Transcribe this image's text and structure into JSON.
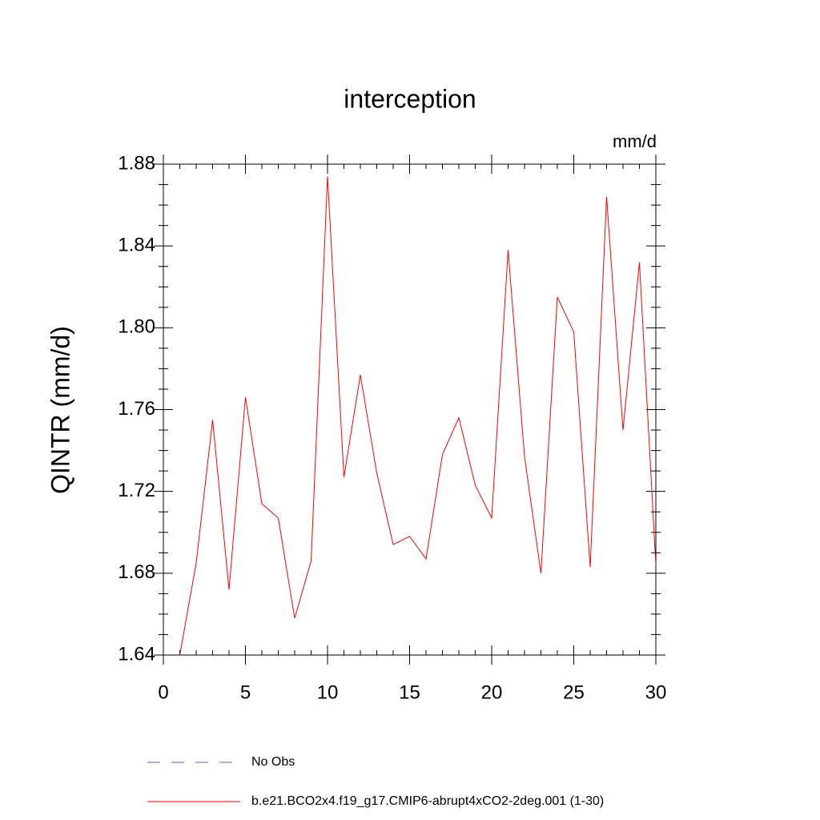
{
  "chart_data": {
    "type": "line",
    "title": "interception",
    "units_label": "mm/d",
    "y_label": "QINTR  (mm/d)",
    "x": [
      1,
      2,
      3,
      4,
      5,
      6,
      7,
      8,
      9,
      10,
      11,
      12,
      13,
      14,
      15,
      16,
      17,
      18,
      19,
      20,
      21,
      22,
      23,
      24,
      25,
      26,
      27,
      28,
      29,
      30
    ],
    "series": [
      {
        "name": "b.e21.BCO2x4.f19_g17.CMIP6-abrupt4xCO2-2deg.001 (1-30)",
        "color": "#ff0000",
        "values": [
          1.64,
          1.685,
          1.755,
          1.672,
          1.766,
          1.714,
          1.707,
          1.658,
          1.686,
          1.874,
          1.727,
          1.777,
          1.729,
          1.694,
          1.698,
          1.687,
          1.738,
          1.756,
          1.723,
          1.707,
          1.838,
          1.737,
          1.68,
          1.815,
          1.798,
          1.683,
          1.864,
          1.75,
          1.832,
          1.684
        ]
      }
    ],
    "extra_legend": [
      {
        "name": "No Obs",
        "color": "#6a5acd",
        "dashed": true
      }
    ],
    "xlim": [
      0,
      30
    ],
    "xticks": [
      0,
      5,
      10,
      15,
      20,
      25,
      30
    ],
    "ylim": [
      1.64,
      1.88
    ],
    "yticks": [
      1.64,
      1.68,
      {
        "value": 1.72,
        "label": "1.72"
      },
      1.76,
      {
        "value": 1.8,
        "label": "1.80"
      },
      1.84,
      1.88
    ],
    "yminorticks": [
      1.65,
      1.66,
      1.67,
      1.69,
      1.7,
      1.71,
      1.73,
      1.74,
      1.75,
      1.77,
      1.78,
      1.79,
      1.81,
      1.82,
      1.83,
      1.85,
      1.86,
      1.87
    ],
    "xminorticks": [
      1,
      2,
      3,
      4,
      6,
      7,
      8,
      9,
      11,
      12,
      13,
      14,
      16,
      17,
      18,
      19,
      21,
      22,
      23,
      24,
      26,
      27,
      28,
      29
    ]
  }
}
